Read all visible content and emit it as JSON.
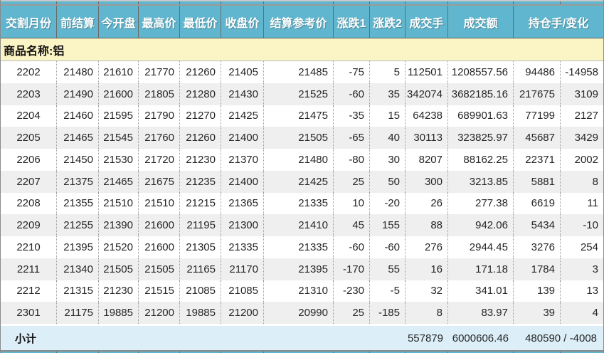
{
  "header": {
    "columns": [
      "交割月份",
      "前结算",
      "今开盘",
      "最高价",
      "最低价",
      "收盘价",
      "结算参考价",
      "涨跌1",
      "涨跌2",
      "成交手",
      "成交额",
      "持仓手/变化"
    ]
  },
  "product": {
    "label": "商品名称:铝"
  },
  "rows": [
    [
      "2202",
      "21480",
      "21610",
      "21770",
      "21260",
      "21405",
      "21485",
      "-75",
      "5",
      "112501",
      "1208557.56",
      "94486",
      "-14958"
    ],
    [
      "2203",
      "21490",
      "21600",
      "21805",
      "21280",
      "21430",
      "21525",
      "-60",
      "35",
      "342074",
      "3682185.16",
      "217675",
      "3109"
    ],
    [
      "2204",
      "21460",
      "21595",
      "21790",
      "21270",
      "21425",
      "21475",
      "-35",
      "15",
      "64238",
      "689901.63",
      "77199",
      "2127"
    ],
    [
      "2205",
      "21465",
      "21545",
      "21760",
      "21260",
      "21400",
      "21505",
      "-65",
      "40",
      "30113",
      "323825.97",
      "45687",
      "3429"
    ],
    [
      "2206",
      "21450",
      "21530",
      "21720",
      "21230",
      "21370",
      "21480",
      "-80",
      "30",
      "8207",
      "88162.25",
      "22371",
      "2002"
    ],
    [
      "2207",
      "21375",
      "21465",
      "21675",
      "21235",
      "21400",
      "21425",
      "25",
      "50",
      "300",
      "3213.85",
      "5881",
      "8"
    ],
    [
      "2208",
      "21355",
      "21510",
      "21510",
      "21215",
      "21365",
      "21335",
      "10",
      "-20",
      "26",
      "277.38",
      "6619",
      "11"
    ],
    [
      "2209",
      "21255",
      "21390",
      "21600",
      "21195",
      "21300",
      "21410",
      "45",
      "155",
      "88",
      "942.06",
      "5434",
      "-10"
    ],
    [
      "2210",
      "21395",
      "21520",
      "21600",
      "21305",
      "21335",
      "21335",
      "-60",
      "-60",
      "276",
      "2944.45",
      "3276",
      "254"
    ],
    [
      "2211",
      "21340",
      "21505",
      "21505",
      "21165",
      "21170",
      "21395",
      "-170",
      "55",
      "16",
      "171.18",
      "1784",
      "3"
    ],
    [
      "2212",
      "21315",
      "21230",
      "21515",
      "21085",
      "21085",
      "21310",
      "-230",
      "-5",
      "32",
      "341.01",
      "139",
      "13"
    ],
    [
      "2301",
      "21175",
      "19885",
      "21200",
      "19885",
      "21200",
      "20990",
      "25",
      "-185",
      "8",
      "83.97",
      "39",
      "4"
    ]
  ],
  "subtotal": {
    "label": "小计",
    "volume": "557879",
    "turnover": "6000606.46",
    "open_interest": "480590 / -4008"
  },
  "colors": {
    "header_bg": "#5FB6CE",
    "product_bg": "#FBF4C5",
    "subtotal_bg": "#DCEEF8",
    "stripe": "#EFEFEF"
  }
}
